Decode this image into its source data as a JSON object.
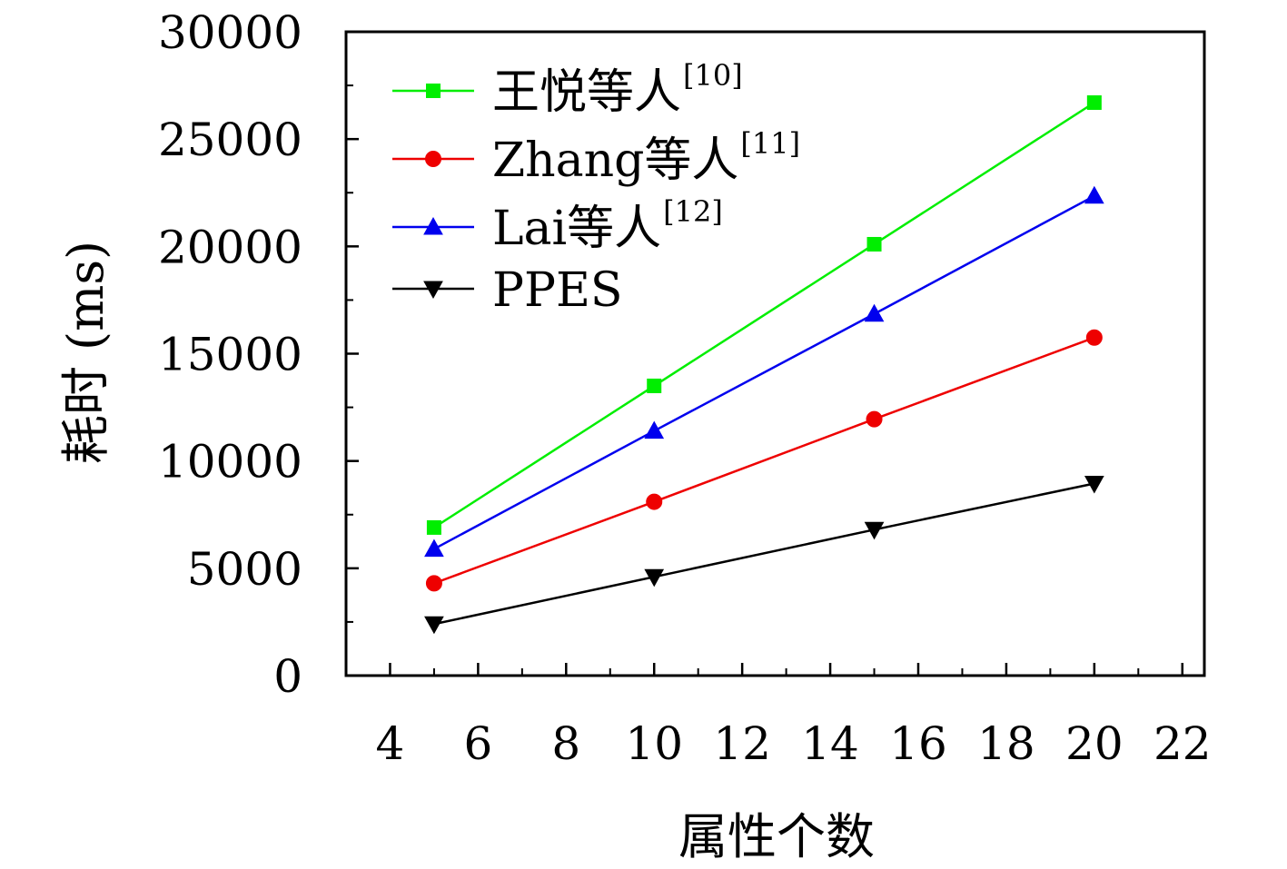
{
  "chart_data": {
    "type": "line",
    "xlabel": "属性个数",
    "ylabel": "耗时 (ms)",
    "xlim": [
      3,
      22.5
    ],
    "ylim": [
      0,
      30000
    ],
    "xticks": [
      4,
      6,
      8,
      10,
      12,
      14,
      16,
      18,
      20,
      22
    ],
    "yticks": [
      0,
      5000,
      10000,
      15000,
      20000,
      25000,
      30000
    ],
    "grid": false,
    "legend_position": "top-left",
    "x": [
      5,
      10,
      15,
      20
    ],
    "series": [
      {
        "name": "王悦等人",
        "ref": "[10]",
        "color": "#00ee00",
        "marker": "square",
        "values": [
          6900,
          13500,
          20100,
          26700
        ]
      },
      {
        "name": "Zhang等人",
        "ref": "[11]",
        "color": "#ee0000",
        "marker": "circle",
        "values": [
          4300,
          8100,
          11950,
          15750
        ]
      },
      {
        "name": "Lai等人",
        "ref": "[12]",
        "color": "#0000ee",
        "marker": "triangle-up",
        "values": [
          5900,
          11400,
          16850,
          22350
        ]
      },
      {
        "name": "PPES",
        "ref": "",
        "color": "#000000",
        "marker": "triangle-down",
        "values": [
          2400,
          4600,
          6800,
          8950
        ]
      }
    ]
  }
}
